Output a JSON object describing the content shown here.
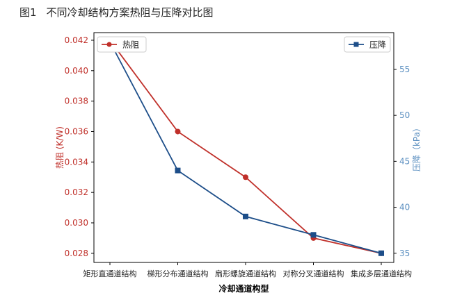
{
  "figure": {
    "number": "图1",
    "title": "不同冷却结构方案热阻与压降对比图"
  },
  "chart_data": {
    "type": "line",
    "xlabel": "冷却通道构型",
    "categories": [
      "矩形直通道结构",
      "梯形分布通道结构",
      "扇形螺旋通道结构",
      "对称分叉通道结构",
      "集成多层通道结构"
    ],
    "y_left": {
      "label": "热阻 (K/W)",
      "ylim": [
        0.0274,
        0.0425
      ],
      "ticks": [
        0.028,
        0.03,
        0.032,
        0.034,
        0.036,
        0.038,
        0.04,
        0.042
      ],
      "tick_labels": [
        "0.028",
        "0.030",
        "0.032",
        "0.034",
        "0.036",
        "0.038",
        "0.040",
        "0.042"
      ]
    },
    "y_right": {
      "label": "压降（kPa）",
      "ylim": [
        34.0,
        59.0
      ],
      "ticks": [
        35,
        40,
        45,
        50,
        55
      ],
      "tick_labels": [
        "35",
        "40",
        "45",
        "50",
        "55"
      ]
    },
    "series": [
      {
        "name": "热阻",
        "axis": "left",
        "marker": "circle",
        "color": "#c0302a",
        "values": [
          0.042,
          0.036,
          0.033,
          0.029,
          0.028
        ]
      },
      {
        "name": "压降",
        "axis": "right",
        "marker": "square",
        "color": "#1d4e89",
        "values": [
          58,
          44,
          39,
          37,
          35
        ]
      }
    ],
    "legend_left": "top-left",
    "legend_right": "top-right",
    "grid": false,
    "colors": {
      "left_axis": "#c0302a",
      "right_axis": "#5b8fc0",
      "axes": "#000000"
    }
  }
}
